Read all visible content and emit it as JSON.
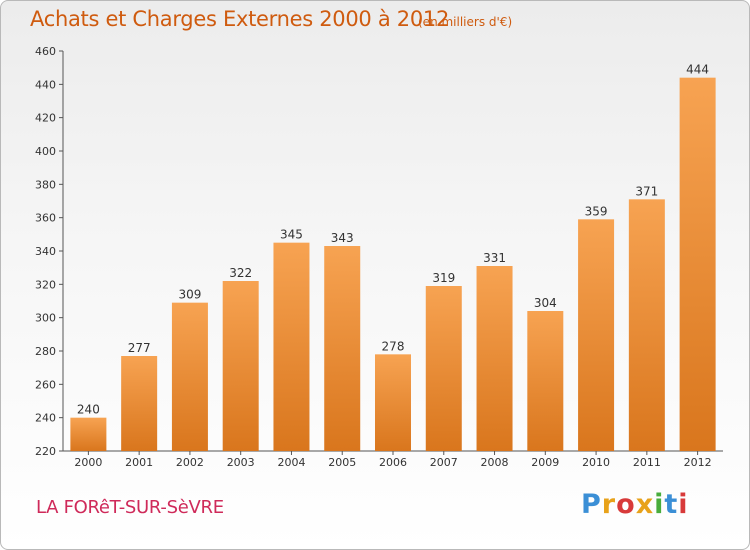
{
  "header": {
    "title": "Achats et Charges Externes 2000 à 2012",
    "subtitle": "(en milliers d'€)"
  },
  "footer": {
    "city": "LA FORêT-SUR-SèVRE",
    "logo_letters": [
      "P",
      "r",
      "o",
      "x",
      "i",
      "t",
      "i"
    ]
  },
  "colors": {
    "bar_light": "#f7a352",
    "bar_dark": "#d9761d",
    "title": "#cf5b0f",
    "city": "#cf2a5a"
  },
  "chart_data": {
    "type": "bar",
    "title": "Achats et Charges Externes 2000 à 2012",
    "subtitle": "(en milliers d'€)",
    "categories": [
      "2000",
      "2001",
      "2002",
      "2003",
      "2004",
      "2005",
      "2006",
      "2007",
      "2008",
      "2009",
      "2010",
      "2011",
      "2012"
    ],
    "values": [
      240,
      277,
      309,
      322,
      345,
      343,
      278,
      319,
      331,
      304,
      359,
      371,
      444
    ],
    "ylim": [
      220,
      460
    ],
    "yticks": [
      220,
      240,
      260,
      280,
      300,
      320,
      340,
      360,
      380,
      400,
      420,
      440,
      460
    ],
    "grid": false,
    "legend": "none"
  }
}
